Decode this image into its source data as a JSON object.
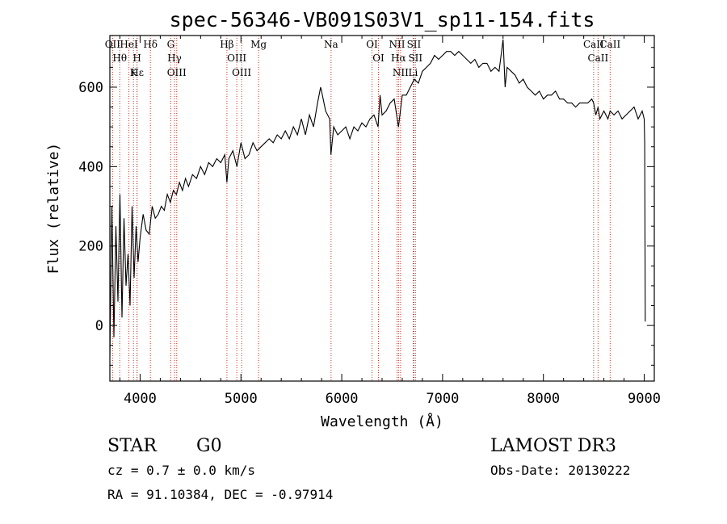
{
  "chart_data": {
    "type": "line",
    "title": "spec-56346-VB091S03V1_sp11-154.fits",
    "xlabel": "Wavelength (Å)",
    "ylabel": "Flux (relative)",
    "xlim": [
      3700,
      9100
    ],
    "ylim": [
      -140,
      730
    ],
    "xticks": [
      4000,
      5000,
      6000,
      7000,
      8000,
      9000
    ],
    "yticks": [
      0,
      200,
      400,
      600
    ],
    "series": [
      {
        "name": "flux",
        "x": [
          3700,
          3720,
          3740,
          3760,
          3780,
          3800,
          3820,
          3840,
          3860,
          3880,
          3900,
          3920,
          3940,
          3960,
          3980,
          4000,
          4030,
          4060,
          4090,
          4120,
          4150,
          4180,
          4210,
          4240,
          4270,
          4300,
          4330,
          4360,
          4390,
          4420,
          4450,
          4480,
          4520,
          4560,
          4600,
          4640,
          4680,
          4720,
          4760,
          4800,
          4840,
          4861,
          4880,
          4920,
          4960,
          5000,
          5040,
          5080,
          5120,
          5160,
          5200,
          5240,
          5280,
          5320,
          5360,
          5400,
          5440,
          5480,
          5520,
          5560,
          5600,
          5640,
          5680,
          5720,
          5760,
          5790,
          5800,
          5840,
          5880,
          5893,
          5920,
          5960,
          6000,
          6040,
          6080,
          6120,
          6160,
          6200,
          6240,
          6280,
          6320,
          6360,
          6380,
          6400,
          6440,
          6480,
          6520,
          6563,
          6600,
          6640,
          6680,
          6720,
          6760,
          6800,
          6840,
          6880,
          6920,
          6960,
          7000,
          7040,
          7080,
          7120,
          7160,
          7200,
          7240,
          7280,
          7320,
          7360,
          7400,
          7440,
          7480,
          7520,
          7560,
          7600,
          7620,
          7640,
          7680,
          7720,
          7760,
          7800,
          7840,
          7880,
          7920,
          7960,
          8000,
          8040,
          8080,
          8120,
          8160,
          8200,
          8240,
          8280,
          8320,
          8360,
          8400,
          8440,
          8480,
          8498,
          8520,
          8542,
          8560,
          8600,
          8640,
          8662,
          8700,
          8740,
          8780,
          8820,
          8860,
          8900,
          8940,
          8980,
          9000,
          9005,
          9010
        ],
        "y": [
          -80,
          300,
          -30,
          250,
          60,
          330,
          20,
          270,
          100,
          180,
          50,
          300,
          120,
          250,
          160,
          220,
          280,
          240,
          230,
          300,
          270,
          280,
          300,
          290,
          330,
          310,
          340,
          330,
          360,
          340,
          370,
          350,
          380,
          370,
          400,
          380,
          410,
          400,
          420,
          410,
          430,
          360,
          420,
          440,
          400,
          460,
          420,
          430,
          460,
          440,
          450,
          460,
          470,
          460,
          480,
          470,
          490,
          470,
          500,
          480,
          520,
          480,
          530,
          500,
          560,
          600,
          590,
          540,
          520,
          430,
          500,
          480,
          490,
          500,
          470,
          500,
          490,
          510,
          500,
          520,
          530,
          500,
          580,
          530,
          540,
          560,
          570,
          500,
          580,
          580,
          600,
          620,
          610,
          640,
          650,
          660,
          680,
          670,
          680,
          690,
          690,
          680,
          690,
          680,
          670,
          660,
          670,
          650,
          660,
          660,
          640,
          650,
          640,
          720,
          600,
          650,
          640,
          630,
          610,
          620,
          600,
          590,
          580,
          590,
          570,
          580,
          580,
          590,
          570,
          570,
          560,
          560,
          550,
          560,
          560,
          560,
          570,
          560,
          530,
          550,
          520,
          540,
          520,
          540,
          530,
          540,
          520,
          530,
          540,
          550,
          520,
          540,
          520,
          460,
          10
        ]
      }
    ],
    "emission_lines": [
      {
        "label": "Hδ",
        "x": 4102
      },
      {
        "label": "Hγ",
        "x": 4341
      },
      {
        "label": "Hβ",
        "x": 4861
      },
      {
        "label": "OIII",
        "x": 4959
      },
      {
        "label": "OIII",
        "x": 5007
      },
      {
        "label": "OI",
        "x": 6300
      },
      {
        "label": "OI",
        "x": 6364
      },
      {
        "label": "NII",
        "x": 6548
      },
      {
        "label": "Hα",
        "x": 6563
      },
      {
        "label": "NII",
        "x": 6583
      },
      {
        "label": "SII",
        "x": 6716
      },
      {
        "label": "SII",
        "x": 6731
      },
      {
        "label": "OII",
        "x": 3727
      },
      {
        "label": "Hε",
        "x": 3970
      },
      {
        "label": "Hθ",
        "x": 3798
      },
      {
        "label": "OIII",
        "x": 4363
      }
    ],
    "absorption_lines": [
      {
        "label": "CaII",
        "x": 8498
      },
      {
        "label": "CaII",
        "x": 8542
      },
      {
        "label": "CaII",
        "x": 8662
      },
      {
        "label": "K",
        "x": 3934
      },
      {
        "label": "H",
        "x": 3969
      },
      {
        "label": "G",
        "x": 4304
      },
      {
        "label": "Mg",
        "x": 5175
      },
      {
        "label": "Na",
        "x": 5894
      },
      {
        "label": "Li",
        "x": 6708
      },
      {
        "label": "HeI",
        "x": 3889
      }
    ]
  },
  "info": {
    "class_label": "STAR",
    "subclass": "G0",
    "survey": "LAMOST DR3",
    "cz": "cz = 0.7 ± 0.0 km/s",
    "obs_date": "Obs-Date: 20130222",
    "radec": "RA =  91.10384, DEC =  -0.97914"
  }
}
